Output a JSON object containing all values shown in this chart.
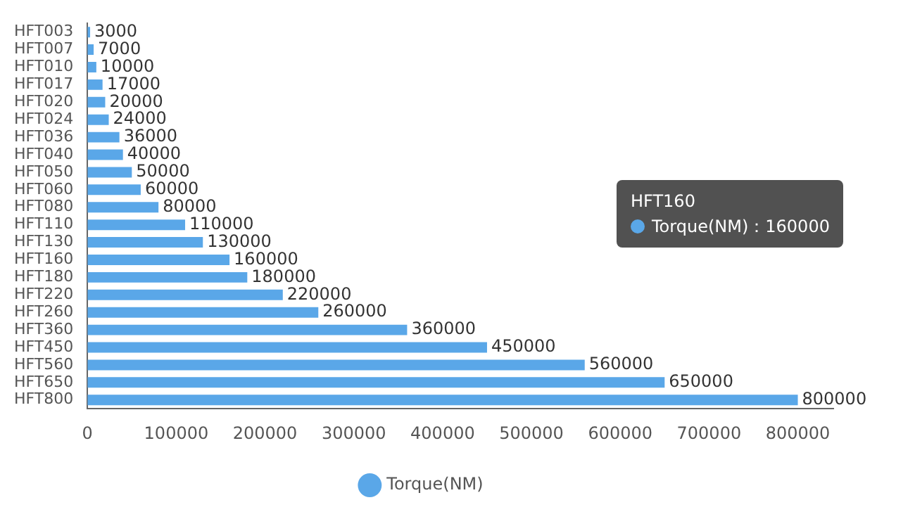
{
  "chart_data": {
    "type": "bar",
    "orientation": "horizontal",
    "categories": [
      "HFT003",
      "HFT007",
      "HFT010",
      "HFT017",
      "HFT020",
      "HFT024",
      "HFT036",
      "HFT040",
      "HFT050",
      "HFT060",
      "HFT080",
      "HFT110",
      "HFT130",
      "HFT160",
      "HFT180",
      "HFT220",
      "HFT260",
      "HFT360",
      "HFT450",
      "HFT560",
      "HFT650",
      "HFT800"
    ],
    "series": [
      {
        "name": "Torque(NM)",
        "color": "#5aa7e8",
        "values": [
          3000,
          7000,
          10000,
          17000,
          20000,
          24000,
          36000,
          40000,
          50000,
          60000,
          80000,
          110000,
          130000,
          160000,
          180000,
          220000,
          260000,
          360000,
          450000,
          560000,
          650000,
          800000
        ]
      }
    ],
    "xlim": [
      0,
      840000
    ],
    "xticks": [
      0,
      100000,
      200000,
      300000,
      400000,
      500000,
      600000,
      700000,
      800000
    ],
    "data_labels": true,
    "grid": false,
    "legend": "bottom",
    "marker": "circle",
    "annotations": [
      "HFT160",
      "Torque(NM)：160000"
    ]
  }
}
